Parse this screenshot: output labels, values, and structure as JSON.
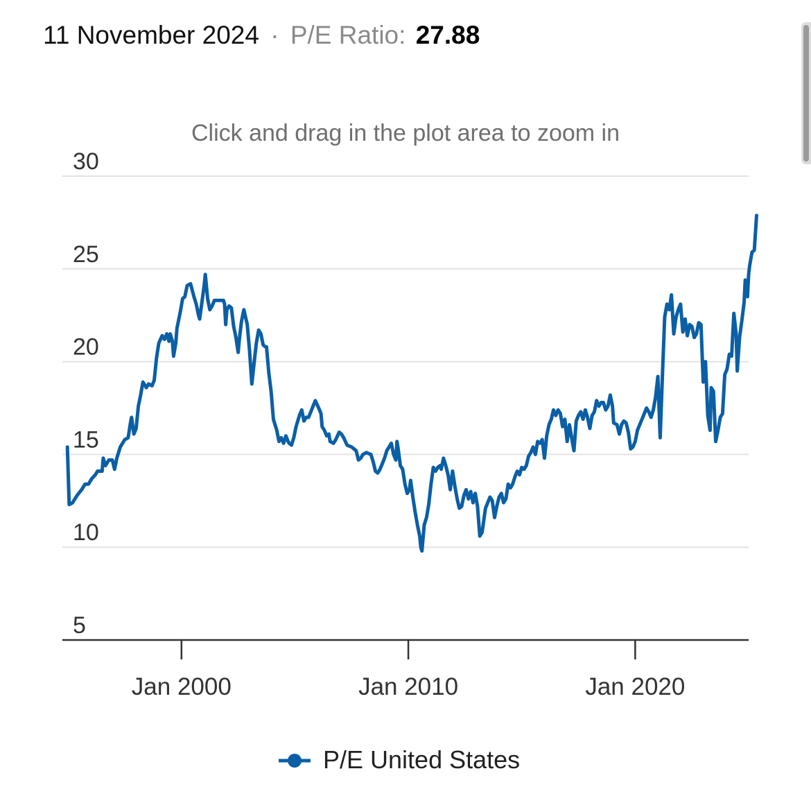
{
  "header": {
    "date": "11 November 2024",
    "separator": "·",
    "label": "P/E Ratio:",
    "value": "27.88"
  },
  "colors": {
    "series": "#0b5fa5",
    "grid": "#e3e3e3",
    "axis": "#333333",
    "muted": "#8a8a8a"
  },
  "chart_data": {
    "type": "line",
    "title": "",
    "hint": "Click and drag in the plot area to zoom in",
    "xlabel": "",
    "ylabel": "",
    "ylim": [
      5,
      30
    ],
    "xlim": [
      1994.75,
      2025.0
    ],
    "yticks": [
      5,
      10,
      15,
      20,
      25,
      30
    ],
    "xticks": [
      {
        "value": 2000.0,
        "label": "Jan 2000"
      },
      {
        "value": 2010.0,
        "label": "Jan 2010"
      },
      {
        "value": 2020.0,
        "label": "Jan 2020"
      }
    ],
    "grid": true,
    "legend": "bottom-center",
    "series": [
      {
        "name": "P/E United States",
        "points": [
          [
            1994.97,
            15.4
          ],
          [
            1995.05,
            12.3
          ],
          [
            1995.2,
            12.4
          ],
          [
            1995.4,
            12.8
          ],
          [
            1995.6,
            13.1
          ],
          [
            1995.75,
            13.4
          ],
          [
            1995.9,
            13.4
          ],
          [
            1996.05,
            13.7
          ],
          [
            1996.2,
            13.9
          ],
          [
            1996.3,
            14.1
          ],
          [
            1996.4,
            14.1
          ],
          [
            1996.5,
            14.1
          ],
          [
            1996.55,
            14.8
          ],
          [
            1996.65,
            14.4
          ],
          [
            1996.8,
            14.7
          ],
          [
            1996.95,
            14.7
          ],
          [
            1997.05,
            14.2
          ],
          [
            1997.15,
            14.8
          ],
          [
            1997.3,
            15.4
          ],
          [
            1997.5,
            15.8
          ],
          [
            1997.65,
            15.9
          ],
          [
            1997.75,
            16.7
          ],
          [
            1997.8,
            17.0
          ],
          [
            1997.9,
            16.1
          ],
          [
            1998.0,
            16.4
          ],
          [
            1998.1,
            17.6
          ],
          [
            1998.2,
            18.2
          ],
          [
            1998.3,
            18.9
          ],
          [
            1998.45,
            18.6
          ],
          [
            1998.55,
            18.8
          ],
          [
            1998.7,
            18.7
          ],
          [
            1998.8,
            19.0
          ],
          [
            1998.9,
            20.2
          ],
          [
            1999.0,
            21.0
          ],
          [
            1999.15,
            21.4
          ],
          [
            1999.25,
            21.2
          ],
          [
            1999.35,
            21.5
          ],
          [
            1999.45,
            21.1
          ],
          [
            1999.5,
            21.5
          ],
          [
            1999.6,
            21.1
          ],
          [
            1999.65,
            20.3
          ],
          [
            1999.75,
            21.0
          ],
          [
            1999.8,
            21.8
          ],
          [
            1999.95,
            22.7
          ],
          [
            2000.05,
            23.4
          ],
          [
            2000.15,
            23.5
          ],
          [
            2000.25,
            24.1
          ],
          [
            2000.4,
            24.2
          ],
          [
            2000.55,
            23.5
          ],
          [
            2000.65,
            23.1
          ],
          [
            2000.75,
            22.5
          ],
          [
            2000.8,
            22.3
          ],
          [
            2000.9,
            23.2
          ],
          [
            2001.0,
            24.1
          ],
          [
            2001.05,
            24.7
          ],
          [
            2001.15,
            23.4
          ],
          [
            2001.25,
            22.8
          ],
          [
            2001.35,
            23.0
          ],
          [
            2001.45,
            23.3
          ],
          [
            2001.6,
            23.3
          ],
          [
            2001.75,
            23.3
          ],
          [
            2001.85,
            23.3
          ],
          [
            2001.9,
            23.1
          ],
          [
            2001.95,
            22.0
          ],
          [
            2002.0,
            22.8
          ],
          [
            2002.1,
            23.0
          ],
          [
            2002.2,
            22.9
          ],
          [
            2002.3,
            21.9
          ],
          [
            2002.4,
            21.3
          ],
          [
            2002.5,
            20.5
          ],
          [
            2002.55,
            21.2
          ],
          [
            2002.65,
            22.2
          ],
          [
            2002.75,
            22.8
          ],
          [
            2002.9,
            22.0
          ],
          [
            2003.0,
            20.6
          ],
          [
            2003.1,
            18.8
          ],
          [
            2003.2,
            19.9
          ],
          [
            2003.3,
            21.0
          ],
          [
            2003.4,
            21.7
          ],
          [
            2003.5,
            21.5
          ],
          [
            2003.6,
            20.9
          ],
          [
            2003.7,
            20.8
          ],
          [
            2003.75,
            20.8
          ],
          [
            2003.85,
            19.4
          ],
          [
            2003.95,
            18.4
          ],
          [
            2004.05,
            16.9
          ],
          [
            2004.2,
            16.3
          ],
          [
            2004.3,
            15.7
          ],
          [
            2004.4,
            15.9
          ],
          [
            2004.5,
            15.6
          ],
          [
            2004.6,
            16.0
          ],
          [
            2004.7,
            15.7
          ],
          [
            2004.75,
            15.6
          ],
          [
            2004.85,
            15.5
          ],
          [
            2004.95,
            15.9
          ],
          [
            2005.05,
            16.5
          ],
          [
            2005.2,
            17.1
          ],
          [
            2005.3,
            17.4
          ],
          [
            2005.4,
            16.8
          ],
          [
            2005.5,
            17.0
          ],
          [
            2005.6,
            17.0
          ],
          [
            2005.7,
            17.3
          ],
          [
            2005.8,
            17.6
          ],
          [
            2005.9,
            17.9
          ],
          [
            2006.05,
            17.5
          ],
          [
            2006.15,
            17.2
          ],
          [
            2006.2,
            16.5
          ],
          [
            2006.3,
            16.3
          ],
          [
            2006.4,
            16.0
          ],
          [
            2006.5,
            16.1
          ],
          [
            2006.55,
            15.7
          ],
          [
            2006.7,
            15.6
          ],
          [
            2006.8,
            15.8
          ],
          [
            2006.95,
            16.2
          ],
          [
            2007.05,
            16.1
          ],
          [
            2007.15,
            15.9
          ],
          [
            2007.3,
            15.5
          ],
          [
            2007.5,
            15.4
          ],
          [
            2007.7,
            15.2
          ],
          [
            2007.8,
            14.7
          ],
          [
            2007.9,
            14.8
          ],
          [
            2008.0,
            15.0
          ],
          [
            2008.15,
            15.1
          ],
          [
            2008.35,
            15.0
          ],
          [
            2008.45,
            14.6
          ],
          [
            2008.55,
            14.1
          ],
          [
            2008.65,
            14.0
          ],
          [
            2008.75,
            14.2
          ],
          [
            2008.85,
            14.5
          ],
          [
            2008.95,
            14.8
          ],
          [
            2009.05,
            15.2
          ],
          [
            2009.15,
            15.4
          ],
          [
            2009.25,
            15.6
          ],
          [
            2009.35,
            15.0
          ],
          [
            2009.45,
            14.7
          ],
          [
            2009.5,
            15.7
          ],
          [
            2009.55,
            15.3
          ],
          [
            2009.65,
            14.4
          ],
          [
            2009.75,
            14.2
          ],
          [
            2009.85,
            13.4
          ],
          [
            2009.95,
            12.9
          ],
          [
            2010.05,
            13.1
          ],
          [
            2010.1,
            13.6
          ],
          [
            2010.2,
            12.7
          ],
          [
            2010.3,
            11.9
          ],
          [
            2010.4,
            11.2
          ],
          [
            2010.5,
            10.6
          ],
          [
            2010.55,
            10.0
          ],
          [
            2010.6,
            9.8
          ],
          [
            2010.7,
            11.2
          ],
          [
            2010.8,
            11.6
          ],
          [
            2010.9,
            12.3
          ],
          [
            2011.0,
            13.4
          ],
          [
            2011.1,
            14.3
          ],
          [
            2011.2,
            14.1
          ],
          [
            2011.3,
            14.3
          ],
          [
            2011.4,
            14.4
          ],
          [
            2011.45,
            14.2
          ],
          [
            2011.55,
            14.8
          ],
          [
            2011.65,
            14.4
          ],
          [
            2011.75,
            13.9
          ],
          [
            2011.85,
            13.1
          ],
          [
            2011.95,
            14.1
          ],
          [
            2012.05,
            13.3
          ],
          [
            2012.15,
            12.6
          ],
          [
            2012.25,
            12.1
          ],
          [
            2012.35,
            12.2
          ],
          [
            2012.45,
            12.8
          ],
          [
            2012.55,
            13.1
          ],
          [
            2012.65,
            12.6
          ],
          [
            2012.75,
            13.0
          ],
          [
            2012.85,
            12.4
          ],
          [
            2012.95,
            12.9
          ],
          [
            2013.05,
            12.2
          ],
          [
            2013.15,
            10.6
          ],
          [
            2013.25,
            10.8
          ],
          [
            2013.4,
            12.1
          ],
          [
            2013.5,
            12.4
          ],
          [
            2013.6,
            12.7
          ],
          [
            2013.7,
            12.5
          ],
          [
            2013.8,
            11.6
          ],
          [
            2013.9,
            12.2
          ],
          [
            2014.0,
            12.7
          ],
          [
            2014.1,
            12.9
          ],
          [
            2014.2,
            12.4
          ],
          [
            2014.3,
            12.6
          ],
          [
            2014.4,
            13.4
          ],
          [
            2014.5,
            13.2
          ],
          [
            2014.6,
            13.4
          ],
          [
            2014.7,
            13.8
          ],
          [
            2014.8,
            14.1
          ],
          [
            2014.9,
            13.9
          ],
          [
            2015.0,
            14.3
          ],
          [
            2015.1,
            14.2
          ],
          [
            2015.2,
            14.4
          ],
          [
            2015.3,
            14.9
          ],
          [
            2015.4,
            15.1
          ],
          [
            2015.5,
            15.4
          ],
          [
            2015.6,
            15.0
          ],
          [
            2015.7,
            15.7
          ],
          [
            2015.8,
            15.6
          ],
          [
            2015.9,
            15.8
          ],
          [
            2016.0,
            14.8
          ],
          [
            2016.1,
            16.0
          ],
          [
            2016.2,
            16.6
          ],
          [
            2016.3,
            16.9
          ],
          [
            2016.4,
            17.4
          ],
          [
            2016.5,
            17.1
          ],
          [
            2016.6,
            17.4
          ],
          [
            2016.7,
            17.2
          ],
          [
            2016.8,
            16.5
          ],
          [
            2016.9,
            16.9
          ],
          [
            2017.0,
            15.7
          ],
          [
            2017.1,
            16.6
          ],
          [
            2017.2,
            15.9
          ],
          [
            2017.3,
            15.2
          ],
          [
            2017.4,
            16.8
          ],
          [
            2017.5,
            17.1
          ],
          [
            2017.6,
            17.3
          ],
          [
            2017.7,
            16.9
          ],
          [
            2017.8,
            17.4
          ],
          [
            2017.9,
            17.0
          ],
          [
            2018.0,
            16.4
          ],
          [
            2018.1,
            17.1
          ],
          [
            2018.2,
            17.3
          ],
          [
            2018.3,
            17.9
          ],
          [
            2018.4,
            17.6
          ],
          [
            2018.5,
            17.8
          ],
          [
            2018.6,
            17.8
          ],
          [
            2018.7,
            17.4
          ],
          [
            2018.8,
            17.6
          ],
          [
            2018.9,
            18.2
          ],
          [
            2019.0,
            17.6
          ],
          [
            2019.05,
            16.7
          ],
          [
            2019.2,
            16.6
          ],
          [
            2019.3,
            16.1
          ],
          [
            2019.4,
            16.6
          ],
          [
            2019.5,
            16.8
          ],
          [
            2019.6,
            16.7
          ],
          [
            2019.7,
            16.2
          ],
          [
            2019.8,
            15.3
          ],
          [
            2019.9,
            15.4
          ],
          [
            2020.0,
            15.7
          ],
          [
            2020.1,
            16.3
          ],
          [
            2020.2,
            16.6
          ],
          [
            2020.3,
            16.9
          ],
          [
            2020.4,
            17.2
          ],
          [
            2020.5,
            17.5
          ],
          [
            2020.6,
            17.3
          ],
          [
            2020.7,
            17.0
          ],
          [
            2020.8,
            17.4
          ],
          [
            2020.9,
            18.1
          ],
          [
            2021.0,
            19.2
          ],
          [
            2021.1,
            15.9
          ],
          [
            2021.2,
            19.2
          ],
          [
            2021.3,
            22.4
          ],
          [
            2021.4,
            23.1
          ],
          [
            2021.5,
            22.8
          ],
          [
            2021.6,
            23.6
          ],
          [
            2021.7,
            21.5
          ],
          [
            2021.8,
            22.4
          ],
          [
            2021.9,
            22.8
          ],
          [
            2022.0,
            23.1
          ],
          [
            2022.1,
            21.6
          ],
          [
            2022.2,
            22.3
          ],
          [
            2022.3,
            21.4
          ],
          [
            2022.4,
            22.0
          ],
          [
            2022.5,
            21.9
          ],
          [
            2022.6,
            21.3
          ],
          [
            2022.7,
            21.5
          ],
          [
            2022.8,
            22.1
          ],
          [
            2022.9,
            22.0
          ],
          [
            2023.0,
            18.9
          ],
          [
            2023.1,
            20.0
          ],
          [
            2023.2,
            17.1
          ],
          [
            2023.3,
            16.3
          ],
          [
            2023.35,
            18.6
          ],
          [
            2023.45,
            18.4
          ],
          [
            2023.55,
            15.7
          ],
          [
            2023.65,
            16.3
          ],
          [
            2023.75,
            17.0
          ],
          [
            2023.85,
            17.2
          ],
          [
            2023.95,
            19.3
          ],
          [
            2024.05,
            19.6
          ],
          [
            2024.15,
            20.4
          ],
          [
            2024.25,
            20.3
          ],
          [
            2024.35,
            22.6
          ],
          [
            2024.45,
            21.5
          ],
          [
            2024.5,
            19.5
          ],
          [
            2024.6,
            21.3
          ],
          [
            2024.7,
            22.2
          ],
          [
            2024.8,
            23.2
          ],
          [
            2024.85,
            24.4
          ],
          [
            2024.95,
            23.5
          ],
          [
            2025.0,
            24.7
          ],
          [
            2025.05,
            25.2
          ],
          [
            2025.15,
            25.9
          ],
          [
            2025.25,
            26.0
          ],
          [
            2025.35,
            27.88
          ]
        ]
      }
    ]
  }
}
